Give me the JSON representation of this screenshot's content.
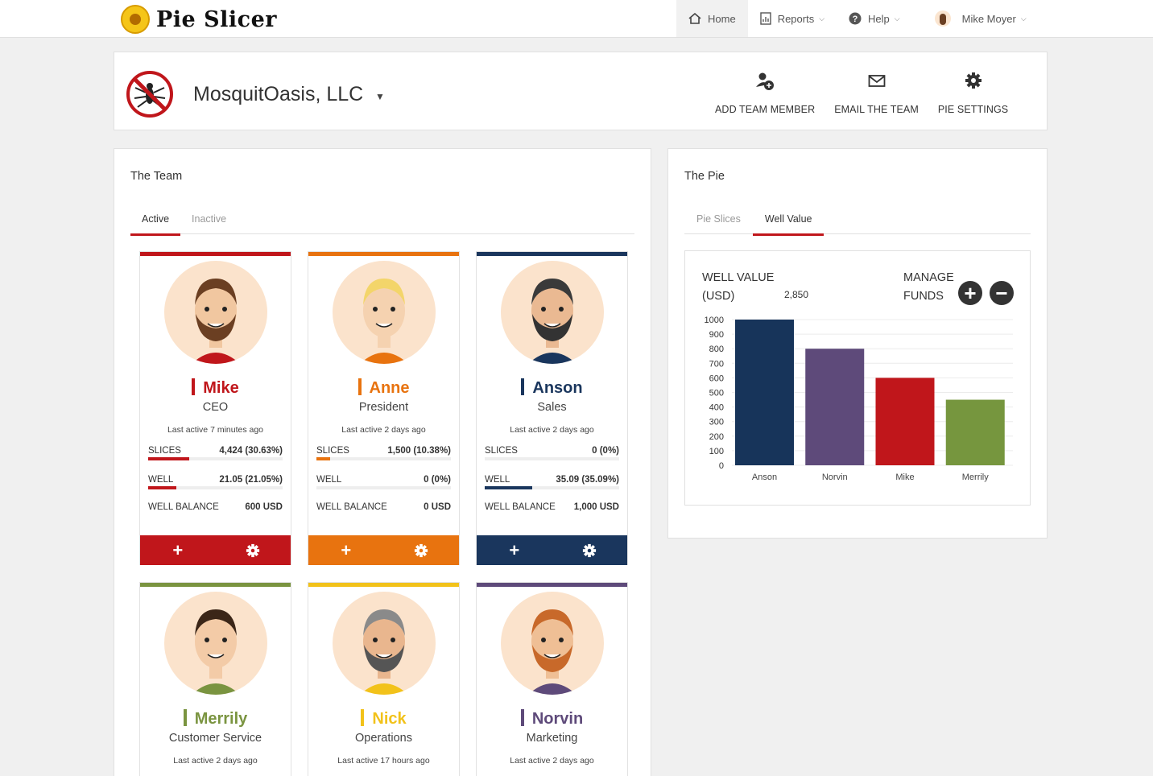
{
  "app": {
    "name": "Pie Slicer"
  },
  "nav": {
    "home": "Home",
    "reports": "Reports",
    "help": "Help",
    "user": "Mike Moyer"
  },
  "company": {
    "name": "MosquitOasis, LLC",
    "actions": {
      "add": "ADD TEAM MEMBER",
      "email": "EMAIL THE TEAM",
      "settings": "PIE SETTINGS"
    }
  },
  "team": {
    "title": "The Team",
    "tabs": [
      "Active",
      "Inactive"
    ],
    "labels": {
      "slices": "SLICES",
      "well": "WELL",
      "balance": "WELL BALANCE"
    },
    "members": [
      {
        "name": "Mike",
        "role": "CEO",
        "last": "Last active 7 minutes ago",
        "slices": "4,424 (30.63%)",
        "slices_frac": 0.3063,
        "well": "21.05 (21.05%)",
        "well_frac": 0.2105,
        "balance": "600 USD",
        "color": "#c0161b"
      },
      {
        "name": "Anne",
        "role": "President",
        "last": "Last active 2 days ago",
        "slices": "1,500 (10.38%)",
        "slices_frac": 0.1038,
        "well": "0 (0%)",
        "well_frac": 0,
        "balance": "0 USD",
        "color": "#e8730f"
      },
      {
        "name": "Anson",
        "role": "Sales",
        "last": "Last active 2 days ago",
        "slices": "0 (0%)",
        "slices_frac": 0,
        "well": "35.09 (35.09%)",
        "well_frac": 0.3509,
        "balance": "1,000 USD",
        "color": "#1a365d"
      },
      {
        "name": "Merrily",
        "role": "Customer Service",
        "last": "Last active 2 days ago",
        "color": "#7a9440"
      },
      {
        "name": "Nick",
        "role": "Operations",
        "last": "Last active 17 hours ago",
        "color": "#f2c21a"
      },
      {
        "name": "Norvin",
        "role": "Marketing",
        "last": "Last active 2 days ago",
        "color": "#5e4a7a"
      }
    ]
  },
  "pie": {
    "title": "The Pie",
    "tabs": [
      "Pie Slices",
      "Well Value"
    ],
    "well_value_label_1": "WELL VALUE",
    "well_value_label_2": "(USD)",
    "well_value": "2,850",
    "manage_label_1": "MANAGE",
    "manage_label_2": "FUNDS",
    "plus": "+",
    "minus": "−"
  },
  "chart_data": {
    "type": "bar",
    "categories": [
      "Anson",
      "Norvin",
      "Mike",
      "Merrily"
    ],
    "values": [
      1000,
      800,
      600,
      450
    ],
    "colors": [
      "#17345a",
      "#5e4a7a",
      "#c0161b",
      "#76963e"
    ],
    "ylim": [
      0,
      1000
    ],
    "yticks": [
      0,
      100,
      200,
      300,
      400,
      500,
      600,
      700,
      800,
      900,
      1000
    ],
    "grid": true
  }
}
